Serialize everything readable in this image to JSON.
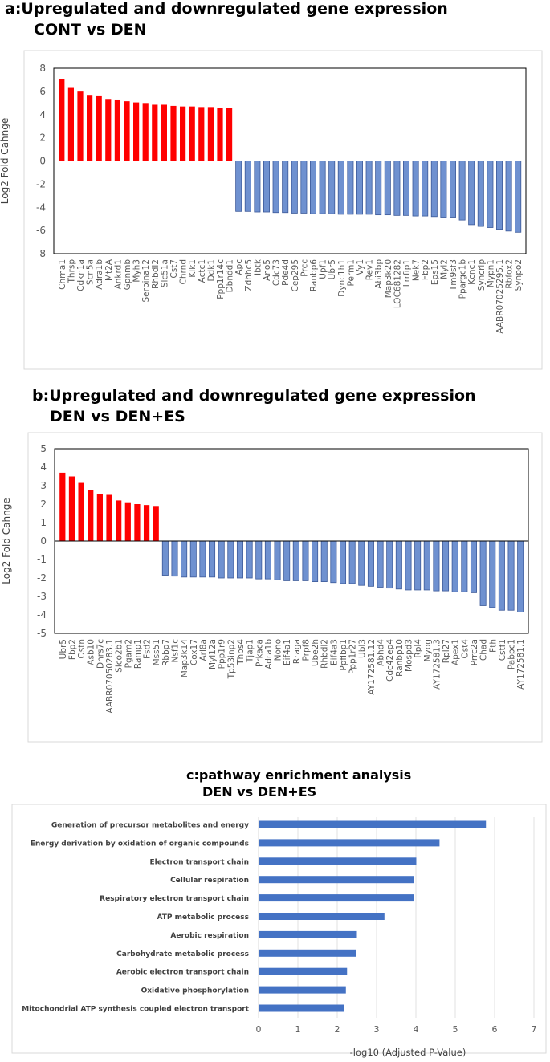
{
  "titles": {
    "a_line1": "a:Upregulated and downregulated gene expression",
    "a_line2": "CONT vs DEN",
    "b_line1": "b:Upregulated and downregulated gene expression",
    "b_line2": "DEN vs DEN+ES",
    "c_line1": "c:pathway enrichment analysis",
    "c_line2": "DEN vs DEN+ES"
  },
  "colors": {
    "up": "#ff0000",
    "down": "#6f91d0",
    "down_edge": "#3d5a99",
    "pathway": "#4472c4"
  },
  "chart_data": [
    {
      "id": "a",
      "type": "bar",
      "title": "a:Upregulated and downregulated gene expression CONT vs DEN",
      "ylabel": "Log2 Fold Cahnge",
      "xlabel": "",
      "ylim": [
        -8,
        8
      ],
      "yticks": [
        -8,
        -6,
        -4,
        -2,
        0,
        2,
        4,
        6,
        8
      ],
      "categories": [
        "Chrna1",
        "Thrsp",
        "Cdkn1a",
        "Scn5a",
        "Adra1b",
        "Mt2A",
        "Ankrd1",
        "Gpnmb",
        "Myh3",
        "Serpina12",
        "Rhbdl2",
        "Slc51a",
        "Cst7",
        "Chrnd",
        "Klk1",
        "Actc1",
        "Ddk1",
        "Ppp1r14c",
        "Dbndd1",
        "Apc",
        "Zdhhc5",
        "Ibtk",
        "Ano5",
        "Cdc73",
        "Pde4d",
        "Cep295",
        "Prcc",
        "Ranbp6",
        "Upf1",
        "Ubr5",
        "Dync1h1",
        "Perm1",
        "Vy1",
        "Rev1",
        "Abi3bp",
        "Map3k20",
        "LOC681282",
        "Lrrfip1",
        "Nek7",
        "Fbp2",
        "Eps15",
        "Myl2",
        "Tm9sf3",
        "Ppargc1b",
        "Kcnc1",
        "Syncrip",
        "Mypn1",
        "AABR07025295.1",
        "Rbfox2",
        "Synpo2"
      ],
      "values": [
        7.1,
        6.3,
        6.05,
        5.7,
        5.65,
        5.35,
        5.3,
        5.15,
        5.05,
        5.0,
        4.85,
        4.85,
        4.75,
        4.7,
        4.7,
        4.65,
        4.65,
        4.6,
        4.55,
        -4.35,
        -4.35,
        -4.4,
        -4.4,
        -4.45,
        -4.45,
        -4.5,
        -4.5,
        -4.55,
        -4.55,
        -4.55,
        -4.6,
        -4.6,
        -4.6,
        -4.6,
        -4.65,
        -4.65,
        -4.7,
        -4.7,
        -4.75,
        -4.75,
        -4.8,
        -4.85,
        -4.85,
        -5.1,
        -5.5,
        -5.65,
        -5.75,
        -5.9,
        -6.05,
        -6.15
      ]
    },
    {
      "id": "b",
      "type": "bar",
      "title": "b:Upregulated and downregulated gene expression DEN vs DEN+ES",
      "ylabel": "Log2 Fold Cahnge",
      "xlabel": "",
      "ylim": [
        -5,
        5
      ],
      "yticks": [
        -5,
        -4,
        -3,
        -2,
        -1,
        0,
        1,
        2,
        3,
        4,
        5
      ],
      "categories": [
        "Ubr5",
        "Fbp2",
        "Ostn",
        "Asb10",
        "Dhrs7c",
        "AABR07050283.1",
        "Slco2b1",
        "Pgam2",
        "Ramp1",
        "Fsd2",
        "Mss51",
        "Rbbp7",
        "Nsf1c",
        "Map3k14",
        "Cox17",
        "Arl8a",
        "Myl12a",
        "Ppp1r9",
        "Tp53inp2",
        "Thbs4",
        "Tjap1",
        "Prkaca",
        "Adra1b",
        "Nono",
        "Eif4a1",
        "Rraga",
        "Prpf8",
        "Ube2h",
        "Rhbdl2",
        "Eif4a3",
        "Ppflbp1",
        "Ppp1r27",
        "Ubl3",
        "AY172581.12",
        "Abhd4",
        "Cdc42ep4",
        "Ranbp10",
        "Mospd3",
        "Rpl4",
        "Myog",
        "AY172581.3",
        "Rpl27",
        "Apex1",
        "Ost4",
        "Prrc2a",
        "Chad",
        "Fth",
        "Cstf1",
        "Pabpc1",
        "AY172581.1"
      ],
      "values": [
        3.7,
        3.5,
        3.15,
        2.75,
        2.55,
        2.5,
        2.2,
        2.1,
        2.0,
        1.95,
        1.9,
        -1.85,
        -1.9,
        -1.95,
        -1.95,
        -1.95,
        -1.95,
        -2.0,
        -2.0,
        -2.0,
        -2.0,
        -2.05,
        -2.05,
        -2.1,
        -2.15,
        -2.15,
        -2.15,
        -2.2,
        -2.2,
        -2.25,
        -2.3,
        -2.3,
        -2.4,
        -2.45,
        -2.5,
        -2.55,
        -2.6,
        -2.65,
        -2.65,
        -2.65,
        -2.7,
        -2.7,
        -2.75,
        -2.75,
        -2.8,
        -3.5,
        -3.6,
        -3.75,
        -3.75,
        -3.85
      ]
    },
    {
      "id": "c",
      "type": "bar",
      "orientation": "horizontal",
      "title": "c:pathway enrichment analysis DEN vs DEN+ES",
      "xlabel": "-log10 (Adjusted P-Value)",
      "ylabel": "",
      "xlim": [
        0,
        7
      ],
      "xticks": [
        0,
        1,
        2,
        3,
        4,
        5,
        6,
        7
      ],
      "grid": true,
      "categories": [
        "Generation of precursor metabolites and energy",
        "Energy derivation by oxidation of organic compounds",
        "Electron transport chain",
        "Cellular respiration",
        "Respiratory electron transport chain",
        "ATP metabolic process",
        "Aerobic respiration",
        "Carbohydrate metabolic process",
        "Aerobic electron transport chain",
        "Oxidative phosphorylation",
        "Mitochondrial ATP synthesis coupled electron transport"
      ],
      "values": [
        5.78,
        4.6,
        4.01,
        3.95,
        3.95,
        3.2,
        2.5,
        2.47,
        2.25,
        2.22,
        2.18
      ]
    }
  ]
}
